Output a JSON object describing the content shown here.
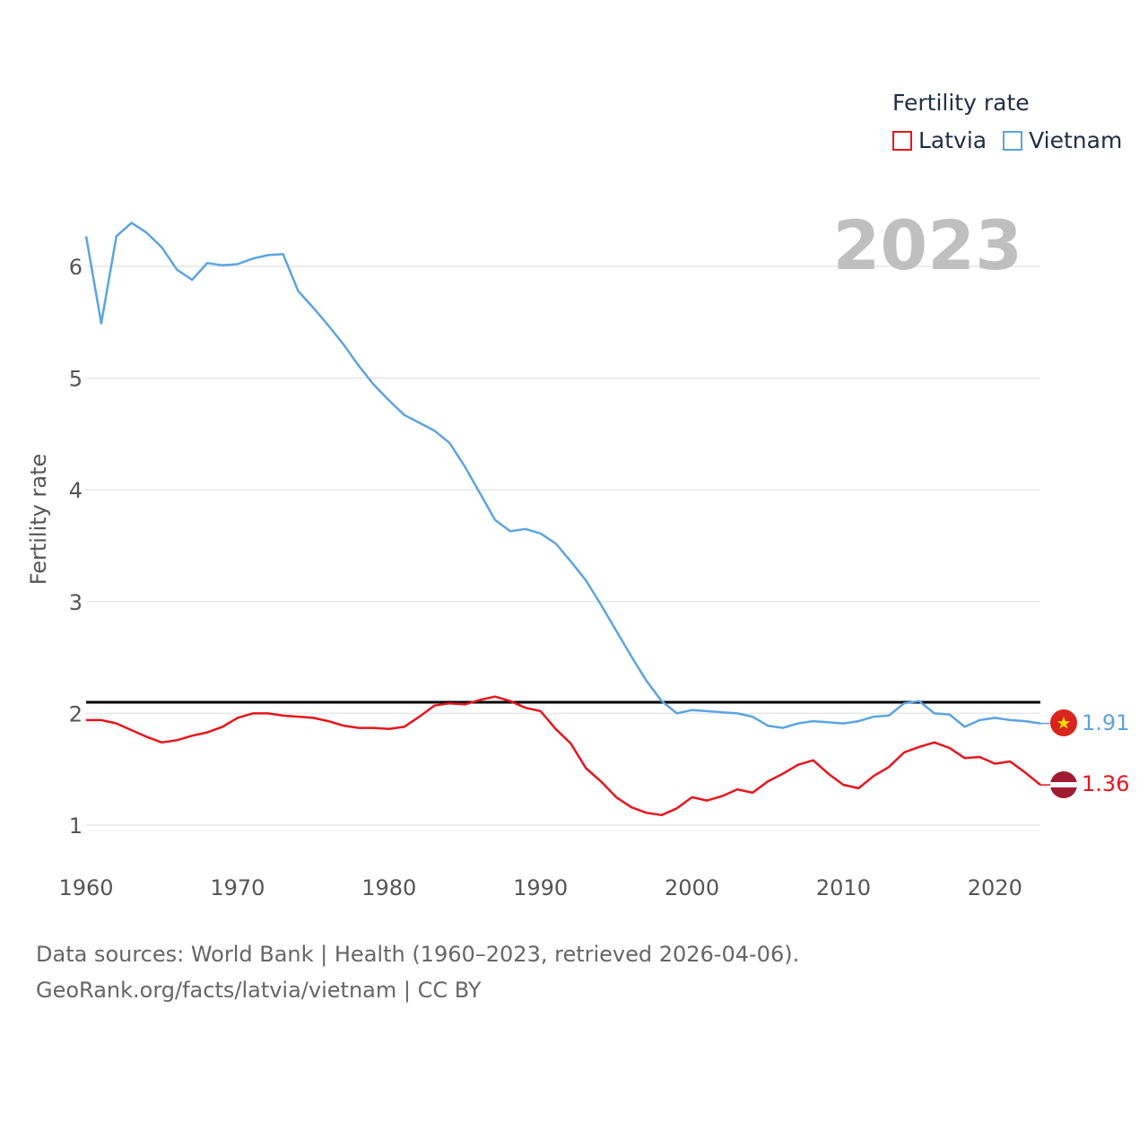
{
  "legend": {
    "title": "Fertility rate",
    "items": [
      {
        "label": "Latvia",
        "color": "#e8141c"
      },
      {
        "label": "Vietnam",
        "color": "#5ba4e0"
      }
    ]
  },
  "footer": {
    "line1": "Data sources: World Bank | Health (1960–2023, retrieved 2026-04-06).",
    "line2": "GeoRank.org/facts/latvia/vietnam | CC BY"
  },
  "chart_data": {
    "type": "line",
    "ylabel": "Fertility rate",
    "xlabel": "",
    "year_label": "2023",
    "xlim": [
      1960,
      2023
    ],
    "ylim": [
      0.5,
      6.7
    ],
    "xticks": [
      1960,
      1970,
      1980,
      1990,
      2000,
      2010,
      2020
    ],
    "yticks": [
      1,
      2,
      3,
      4,
      5,
      6
    ],
    "reference_line": 2.1,
    "x": [
      1960,
      1961,
      1962,
      1963,
      1964,
      1965,
      1966,
      1967,
      1968,
      1969,
      1970,
      1971,
      1972,
      1973,
      1974,
      1975,
      1976,
      1977,
      1978,
      1979,
      1980,
      1981,
      1982,
      1983,
      1984,
      1985,
      1986,
      1987,
      1988,
      1989,
      1990,
      1991,
      1992,
      1993,
      1994,
      1995,
      1996,
      1997,
      1998,
      1999,
      2000,
      2001,
      2002,
      2003,
      2004,
      2005,
      2006,
      2007,
      2008,
      2009,
      2010,
      2011,
      2012,
      2013,
      2014,
      2015,
      2016,
      2017,
      2018,
      2019,
      2020,
      2021,
      2022,
      2023
    ],
    "series": [
      {
        "name": "Vietnam",
        "color": "#5ba4e0",
        "end_label": "1.91",
        "values": [
          6.27,
          5.49,
          6.27,
          6.39,
          6.3,
          6.17,
          5.97,
          5.88,
          6.03,
          6.01,
          6.02,
          6.07,
          6.1,
          6.11,
          5.78,
          5.63,
          5.47,
          5.3,
          5.11,
          4.94,
          4.8,
          4.67,
          4.6,
          4.53,
          4.42,
          4.21,
          3.97,
          3.73,
          3.63,
          3.65,
          3.61,
          3.52,
          3.36,
          3.19,
          2.97,
          2.74,
          2.51,
          2.29,
          2.11,
          2.0,
          2.03,
          2.02,
          2.01,
          2.0,
          1.97,
          1.89,
          1.87,
          1.91,
          1.93,
          1.92,
          1.91,
          1.93,
          1.97,
          1.98,
          2.09,
          2.11,
          2.0,
          1.99,
          1.88,
          1.94,
          1.96,
          1.94,
          1.93,
          1.91
        ]
      },
      {
        "name": "Latvia",
        "color": "#e8141c",
        "end_label": "1.36",
        "values": [
          1.94,
          1.94,
          1.91,
          1.85,
          1.79,
          1.74,
          1.76,
          1.8,
          1.83,
          1.88,
          1.96,
          2.0,
          2.0,
          1.98,
          1.97,
          1.96,
          1.93,
          1.89,
          1.87,
          1.87,
          1.86,
          1.88,
          1.97,
          2.07,
          2.09,
          2.08,
          2.12,
          2.15,
          2.11,
          2.05,
          2.02,
          1.86,
          1.73,
          1.51,
          1.39,
          1.25,
          1.16,
          1.11,
          1.09,
          1.15,
          1.25,
          1.22,
          1.26,
          1.32,
          1.29,
          1.39,
          1.46,
          1.54,
          1.58,
          1.46,
          1.36,
          1.33,
          1.44,
          1.52,
          1.65,
          1.7,
          1.74,
          1.69,
          1.6,
          1.61,
          1.55,
          1.57,
          1.47,
          1.36
        ]
      }
    ]
  }
}
